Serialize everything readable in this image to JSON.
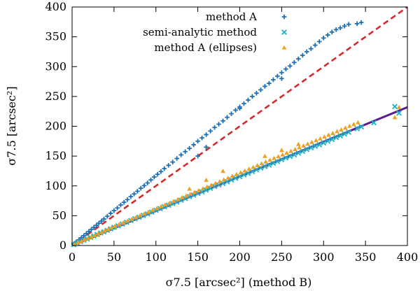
{
  "chart_data": {
    "type": "scatter",
    "xlabel": "σ7.5 [arcsec²] (method B)",
    "ylabel": "σ7.5 [arcsec²]",
    "xlim": [
      0,
      400
    ],
    "ylim": [
      0,
      400
    ],
    "x_ticks": [
      0,
      50,
      100,
      150,
      200,
      250,
      300,
      350,
      400
    ],
    "y_ticks": [
      0,
      50,
      100,
      150,
      200,
      250,
      300,
      350,
      400
    ],
    "grid": false,
    "legend_position": "top-right",
    "series": [
      {
        "name": "method A",
        "marker": "plus",
        "color": "#1f6fb4",
        "points": [
          [
            2,
            2.5
          ],
          [
            5,
            6
          ],
          [
            8,
            9.5
          ],
          [
            11,
            13
          ],
          [
            14,
            16.5
          ],
          [
            17,
            20
          ],
          [
            20,
            23.5
          ],
          [
            23,
            27
          ],
          [
            26,
            30.5
          ],
          [
            29,
            34
          ],
          [
            32,
            37.5
          ],
          [
            35,
            41
          ],
          [
            38,
            44.5
          ],
          [
            42,
            49
          ],
          [
            46,
            54
          ],
          [
            50,
            58.5
          ],
          [
            54,
            63
          ],
          [
            58,
            68
          ],
          [
            62,
            72.5
          ],
          [
            66,
            77
          ],
          [
            70,
            82
          ],
          [
            74,
            86.5
          ],
          [
            78,
            91
          ],
          [
            82,
            96
          ],
          [
            86,
            100.5
          ],
          [
            90,
            105
          ],
          [
            94,
            110
          ],
          [
            98,
            115
          ],
          [
            102,
            119.5
          ],
          [
            106,
            124
          ],
          [
            110,
            129
          ],
          [
            115,
            134.5
          ],
          [
            120,
            140
          ],
          [
            125,
            146
          ],
          [
            130,
            152
          ],
          [
            135,
            157.5
          ],
          [
            140,
            163
          ],
          [
            145,
            169
          ],
          [
            150,
            175
          ],
          [
            155,
            180.5
          ],
          [
            160,
            186
          ],
          [
            165,
            192
          ],
          [
            170,
            198
          ],
          [
            175,
            203.5
          ],
          [
            180,
            209
          ],
          [
            185,
            215
          ],
          [
            190,
            221
          ],
          [
            195,
            227
          ],
          [
            200,
            232.5
          ],
          [
            205,
            238
          ],
          [
            210,
            244
          ],
          [
            215,
            250
          ],
          [
            220,
            255.5
          ],
          [
            225,
            261
          ],
          [
            230,
            267
          ],
          [
            235,
            272
          ],
          [
            240,
            278
          ],
          [
            245,
            284
          ],
          [
            250,
            290
          ],
          [
            255,
            296
          ],
          [
            260,
            301
          ],
          [
            265,
            307
          ],
          [
            270,
            313
          ],
          [
            275,
            319
          ],
          [
            280,
            325
          ],
          [
            285,
            330
          ],
          [
            290,
            336
          ],
          [
            295,
            342
          ],
          [
            300,
            348
          ],
          [
            305,
            353
          ],
          [
            310,
            358
          ],
          [
            315,
            362
          ],
          [
            320,
            365
          ],
          [
            325,
            368
          ],
          [
            330,
            371
          ],
          [
            340,
            372
          ],
          [
            345,
            374
          ],
          [
            150,
            150
          ],
          [
            160,
            165
          ],
          [
            200,
            230
          ],
          [
            250,
            280
          ]
        ]
      },
      {
        "name": "semi-analytic method",
        "marker": "cross",
        "color": "#19b5c8",
        "points": [
          [
            2,
            1.5
          ],
          [
            6,
            4
          ],
          [
            10,
            6.5
          ],
          [
            14,
            9
          ],
          [
            18,
            11
          ],
          [
            22,
            13.5
          ],
          [
            26,
            16
          ],
          [
            30,
            18.5
          ],
          [
            34,
            21
          ],
          [
            38,
            23
          ],
          [
            42,
            25.5
          ],
          [
            46,
            28
          ],
          [
            50,
            30.5
          ],
          [
            55,
            33
          ],
          [
            60,
            36
          ],
          [
            65,
            39
          ],
          [
            70,
            42
          ],
          [
            75,
            45
          ],
          [
            80,
            47.5
          ],
          [
            85,
            50.5
          ],
          [
            90,
            53
          ],
          [
            95,
            56
          ],
          [
            100,
            59
          ],
          [
            105,
            62
          ],
          [
            110,
            65
          ],
          [
            115,
            67.5
          ],
          [
            120,
            70.5
          ],
          [
            125,
            73
          ],
          [
            130,
            76
          ],
          [
            135,
            79
          ],
          [
            140,
            82
          ],
          [
            145,
            84.5
          ],
          [
            150,
            87.5
          ],
          [
            155,
            90
          ],
          [
            160,
            93
          ],
          [
            165,
            96
          ],
          [
            170,
            99
          ],
          [
            175,
            101.5
          ],
          [
            180,
            104
          ],
          [
            185,
            107
          ],
          [
            190,
            110
          ],
          [
            195,
            113
          ],
          [
            200,
            115.5
          ],
          [
            205,
            118.5
          ],
          [
            210,
            121
          ],
          [
            215,
            124
          ],
          [
            220,
            127
          ],
          [
            225,
            130
          ],
          [
            230,
            132.5
          ],
          [
            235,
            135
          ],
          [
            240,
            138
          ],
          [
            245,
            141
          ],
          [
            250,
            144
          ],
          [
            255,
            147
          ],
          [
            260,
            149.5
          ],
          [
            265,
            152
          ],
          [
            270,
            155
          ],
          [
            275,
            158
          ],
          [
            280,
            161
          ],
          [
            285,
            164
          ],
          [
            290,
            166.5
          ],
          [
            295,
            169
          ],
          [
            300,
            172
          ],
          [
            305,
            175
          ],
          [
            310,
            178
          ],
          [
            315,
            181
          ],
          [
            320,
            184
          ],
          [
            325,
            187
          ],
          [
            330,
            190
          ],
          [
            340,
            196
          ],
          [
            345,
            199
          ],
          [
            360,
            206
          ],
          [
            385,
            233
          ],
          [
            390,
            222
          ]
        ]
      },
      {
        "name": "method A (ellipses)",
        "marker": "triangle",
        "color": "#f0a01e",
        "points": [
          [
            3,
            2.5
          ],
          [
            7,
            5
          ],
          [
            11,
            7.5
          ],
          [
            15,
            10
          ],
          [
            19,
            12.5
          ],
          [
            23,
            15
          ],
          [
            27,
            17.5
          ],
          [
            31,
            20
          ],
          [
            35,
            22.5
          ],
          [
            39,
            25
          ],
          [
            43,
            27.5
          ],
          [
            47,
            30
          ],
          [
            51,
            32.5
          ],
          [
            56,
            35.5
          ],
          [
            61,
            38.5
          ],
          [
            66,
            41.5
          ],
          [
            71,
            44.5
          ],
          [
            76,
            47.5
          ],
          [
            81,
            50.5
          ],
          [
            86,
            53.5
          ],
          [
            91,
            56.5
          ],
          [
            96,
            59.5
          ],
          [
            101,
            62.5
          ],
          [
            106,
            65.5
          ],
          [
            111,
            68.5
          ],
          [
            116,
            71.5
          ],
          [
            121,
            74.5
          ],
          [
            126,
            77.5
          ],
          [
            131,
            80.5
          ],
          [
            136,
            83.5
          ],
          [
            141,
            86.5
          ],
          [
            146,
            89.5
          ],
          [
            151,
            92.5
          ],
          [
            156,
            95.5
          ],
          [
            161,
            98.5
          ],
          [
            166,
            101.5
          ],
          [
            171,
            104.5
          ],
          [
            176,
            107.5
          ],
          [
            181,
            110.5
          ],
          [
            186,
            113.5
          ],
          [
            191,
            116.5
          ],
          [
            196,
            119.5
          ],
          [
            201,
            122.5
          ],
          [
            206,
            125.5
          ],
          [
            211,
            128.5
          ],
          [
            216,
            131.5
          ],
          [
            221,
            134.5
          ],
          [
            226,
            137.5
          ],
          [
            231,
            140.5
          ],
          [
            236,
            143.5
          ],
          [
            241,
            146.5
          ],
          [
            246,
            149.5
          ],
          [
            251,
            152.5
          ],
          [
            256,
            155.5
          ],
          [
            261,
            158.5
          ],
          [
            266,
            161.5
          ],
          [
            271,
            164.5
          ],
          [
            276,
            167.5
          ],
          [
            281,
            170.5
          ],
          [
            286,
            173.5
          ],
          [
            291,
            176.5
          ],
          [
            296,
            179.5
          ],
          [
            301,
            182.5
          ],
          [
            306,
            185.5
          ],
          [
            311,
            188.5
          ],
          [
            316,
            191.5
          ],
          [
            321,
            194.5
          ],
          [
            326,
            197.5
          ],
          [
            331,
            200.5
          ],
          [
            336,
            203.5
          ],
          [
            341,
            206.5
          ],
          [
            140,
            95
          ],
          [
            160,
            110
          ],
          [
            180,
            125
          ],
          [
            230,
            150
          ],
          [
            250,
            160
          ],
          [
            270,
            170
          ],
          [
            385,
            215
          ],
          [
            390,
            232
          ]
        ]
      }
    ],
    "lines": [
      {
        "style": "dashed",
        "color": "#d62a2a",
        "x": [
          0,
          400
        ],
        "y": [
          0,
          400
        ]
      },
      {
        "style": "solid",
        "color": "#5b1e8e",
        "x": [
          0,
          400
        ],
        "y": [
          0,
          232
        ]
      }
    ]
  }
}
